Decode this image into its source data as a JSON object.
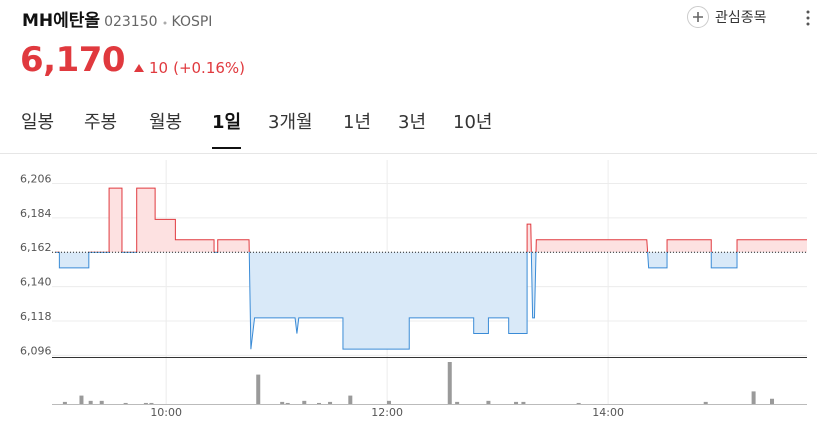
{
  "header": {
    "name": "MH에탄올",
    "code": "023150",
    "market": "KOSPI",
    "watchlist": "관심종목",
    "price": "6,170",
    "change": "10",
    "change_pct": "(+0.16%)"
  },
  "tabs": [
    "일봉",
    "주봉",
    "월봉",
    "1일",
    "3개월",
    "1년",
    "3년",
    "10년"
  ],
  "active_tab": 3,
  "chart_data": {
    "type": "line",
    "x": [
      "09:00",
      "09:02",
      "09:02",
      "09:18",
      "09:18",
      "09:29",
      "09:29",
      "09:36",
      "09:36",
      "09:44",
      "09:44",
      "09:54",
      "09:54",
      "10:05",
      "10:05",
      "10:26",
      "10:26",
      "10:28",
      "10:28",
      "10:45",
      "10:46",
      "10:48",
      "11:10",
      "11:11",
      "11:12",
      "11:36",
      "11:36",
      "12:12",
      "12:12",
      "12:47",
      "12:47",
      "12:55",
      "12:55",
      "13:06",
      "13:06",
      "13:16",
      "13:16",
      "13:18",
      "13:19",
      "13:20",
      "13:21",
      "14:21",
      "14:22",
      "14:32",
      "14:32",
      "14:56",
      "14:56",
      "15:10",
      "15:10",
      "15:48"
    ],
    "values": [
      6162,
      6162,
      6152,
      6152,
      6162,
      6162,
      6203,
      6203,
      6162,
      6162,
      6203,
      6203,
      6183,
      6183,
      6170,
      6170,
      6162,
      6162,
      6170,
      6170,
      6100,
      6120,
      6120,
      6110,
      6120,
      6120,
      6100,
      6100,
      6120,
      6120,
      6110,
      6110,
      6120,
      6120,
      6110,
      6110,
      6180,
      6180,
      6120,
      6120,
      6170,
      6170,
      6152,
      6152,
      6170,
      6170,
      6152,
      6152,
      6170,
      6170
    ],
    "baseline": 6162,
    "up_color": "#e0393e",
    "up_fill": "#fde1e1",
    "down_color": "#3a8bd6",
    "down_fill": "#d9e9f8",
    "ylim": [
      6095,
      6221
    ],
    "yticks": [
      {
        "value": 6096,
        "label": "6,096"
      },
      {
        "value": 6118,
        "label": "6,118"
      },
      {
        "value": 6140,
        "label": "6,140"
      },
      {
        "value": 6162,
        "label": "6,162"
      },
      {
        "value": 6184,
        "label": "6,184"
      },
      {
        "value": 6206,
        "label": "6,206"
      }
    ],
    "xlim": [
      "08:58",
      "15:48"
    ],
    "xticks": [
      "10:00",
      "12:00",
      "14:00"
    ],
    "grid": true,
    "volume": {
      "color": "#9a9a9a",
      "x": [
        "09:05",
        "09:14",
        "09:19",
        "09:25",
        "09:38",
        "09:49",
        "09:52",
        "10:50",
        "11:03",
        "11:06",
        "11:15",
        "11:23",
        "11:29",
        "11:40",
        "12:01",
        "12:34",
        "12:38",
        "12:55",
        "13:10",
        "13:14",
        "13:44",
        "14:53",
        "15:19",
        "15:29"
      ],
      "values": [
        2,
        8,
        3,
        3,
        1,
        1,
        1,
        28,
        2,
        1,
        3,
        1,
        2,
        8,
        3,
        40,
        2,
        3,
        2,
        2,
        1,
        2,
        12,
        5
      ]
    }
  }
}
